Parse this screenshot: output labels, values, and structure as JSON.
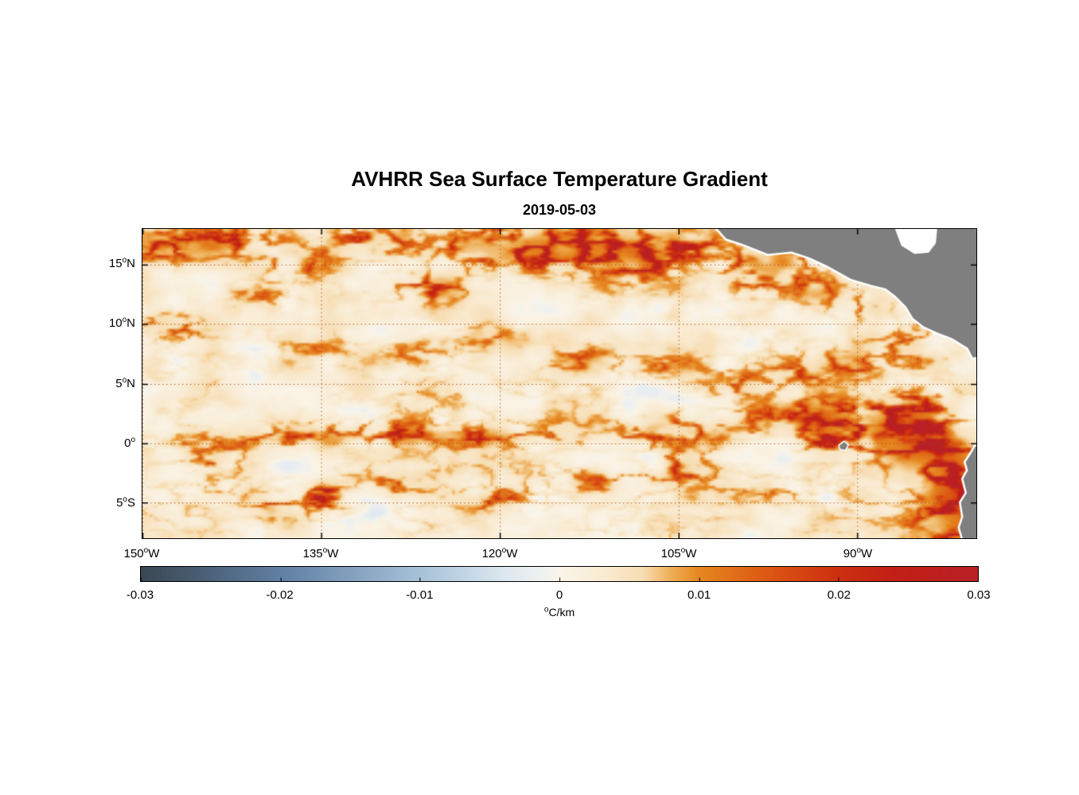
{
  "chart_data": {
    "type": "heatmap",
    "title": "AVHRR Sea Surface Temperature Gradient",
    "subtitle": "2019-05-03",
    "units_label": {
      "deg": "o",
      "text": "C/km"
    },
    "x_axis": {
      "lon_range": [
        -150,
        -80
      ],
      "ticks": [
        {
          "num": "150",
          "deg": "o",
          "hem": "W",
          "lon": -150
        },
        {
          "num": "135",
          "deg": "o",
          "hem": "W",
          "lon": -135
        },
        {
          "num": "120",
          "deg": "o",
          "hem": "W",
          "lon": -120
        },
        {
          "num": "105",
          "deg": "o",
          "hem": "W",
          "lon": -105
        },
        {
          "num": "90",
          "deg": "o",
          "hem": "W",
          "lon": -90
        }
      ]
    },
    "y_axis": {
      "lat_range": [
        18,
        -8
      ],
      "ticks": [
        {
          "num": "15",
          "deg": "o",
          "hem": "N",
          "lat": 15
        },
        {
          "num": "10",
          "deg": "o",
          "hem": "N",
          "lat": 10
        },
        {
          "num": "5",
          "deg": "o",
          "hem": "N",
          "lat": 5
        },
        {
          "num": "0",
          "deg": "o",
          "hem": "",
          "lat": 0
        },
        {
          "num": "5",
          "deg": "o",
          "hem": "S",
          "lat": -5
        }
      ]
    },
    "colorbar": {
      "min": -0.03,
      "max": 0.03,
      "ticks": [
        {
          "label": "-0.03",
          "value": -0.03
        },
        {
          "label": "-0.02",
          "value": -0.02
        },
        {
          "label": "-0.01",
          "value": -0.01
        },
        {
          "label": "0",
          "value": 0
        },
        {
          "label": "0.01",
          "value": 0.01
        },
        {
          "label": "0.02",
          "value": 0.02
        },
        {
          "label": "0.03",
          "value": 0.03
        }
      ],
      "stops": [
        {
          "v": -0.03,
          "c": "#3A4753"
        },
        {
          "v": -0.02,
          "c": "#5F7FA3"
        },
        {
          "v": -0.01,
          "c": "#A6C2D9"
        },
        {
          "v": -0.004,
          "c": "#DCE7EF"
        },
        {
          "v": -0.001,
          "c": "#F1F2F0"
        },
        {
          "v": 0.0,
          "c": "#FAF4E8"
        },
        {
          "v": 0.003,
          "c": "#F9ECD4"
        },
        {
          "v": 0.006,
          "c": "#F7DDB2"
        },
        {
          "v": 0.008,
          "c": "#EFAE56"
        },
        {
          "v": 0.01,
          "c": "#E68821"
        },
        {
          "v": 0.013,
          "c": "#E06A17"
        },
        {
          "v": 0.016,
          "c": "#D94E12"
        },
        {
          "v": 0.02,
          "c": "#CC3010"
        },
        {
          "v": 0.024,
          "c": "#C21F16"
        },
        {
          "v": 0.03,
          "c": "#B82025"
        }
      ]
    },
    "grid_color": "rgba(165,75,20,0.85)",
    "land_color": "#7F7F7F",
    "coast_gap_color": "#FFFFFF",
    "field": {
      "seeds": {
        "ridge": 7,
        "base": 13,
        "env": 21,
        "neg": 29
      },
      "features": [
        [
          -148.5,
          16.5,
          2.2,
          1.0,
          0.018
        ],
        [
          -143,
          17.0,
          2.5,
          0.9,
          0.016
        ],
        [
          -137,
          15.0,
          2.0,
          0.9,
          0.012
        ],
        [
          -131,
          16.8,
          2.8,
          0.9,
          0.018
        ],
        [
          -125.5,
          13.2,
          2.2,
          0.9,
          0.015
        ],
        [
          -122,
          16.5,
          2.5,
          1.0,
          0.018
        ],
        [
          -117,
          16.2,
          2.5,
          1.2,
          0.022
        ],
        [
          -112.5,
          16.8,
          2.2,
          1.2,
          0.024
        ],
        [
          -108.5,
          15.5,
          2.0,
          1.3,
          0.026
        ],
        [
          -104,
          16.5,
          2.0,
          1.0,
          0.018
        ],
        [
          -99,
          14.5,
          1.8,
          1.2,
          0.016
        ],
        [
          -96.5,
          15.3,
          1.5,
          1.0,
          0.02
        ],
        [
          -93.5,
          13.0,
          1.8,
          1.0,
          0.012
        ],
        [
          -89.5,
          11.5,
          1.8,
          1.0,
          0.01
        ],
        [
          -147.5,
          9.8,
          1.8,
          0.8,
          0.013
        ],
        [
          -140,
          12.5,
          2.0,
          0.8,
          0.01
        ],
        [
          -135,
          8.0,
          2.0,
          0.7,
          0.008
        ],
        [
          -127.5,
          7.6,
          2.2,
          0.7,
          0.01
        ],
        [
          -121,
          9.0,
          1.8,
          0.7,
          0.009
        ],
        [
          -113,
          7.2,
          2.2,
          0.8,
          0.01
        ],
        [
          -106,
          6.5,
          2.0,
          0.8,
          0.011
        ],
        [
          -100.5,
          5.0,
          2.0,
          0.9,
          0.012
        ],
        [
          -95,
          6.0,
          2.0,
          1.0,
          0.012
        ],
        [
          -90.5,
          6.5,
          2.0,
          1.0,
          0.012
        ],
        [
          -86,
          8.0,
          1.8,
          1.2,
          0.012
        ],
        [
          -143,
          0.0,
          2.5,
          0.7,
          0.01
        ],
        [
          -136.5,
          0.6,
          3.0,
          0.7,
          0.014
        ],
        [
          -129,
          0.8,
          3.0,
          0.7,
          0.015
        ],
        [
          -122,
          0.4,
          2.5,
          0.6,
          0.012
        ],
        [
          -115,
          0.6,
          2.5,
          0.7,
          0.01
        ],
        [
          -108,
          0.8,
          2.5,
          0.7,
          0.011
        ],
        [
          -101.5,
          1.5,
          2.5,
          0.8,
          0.012
        ],
        [
          -96,
          2.5,
          2.2,
          1.0,
          0.013
        ],
        [
          -92.5,
          0.3,
          1.5,
          0.8,
          0.016
        ],
        [
          -91.5,
          2.0,
          2.0,
          1.2,
          0.016
        ],
        [
          -87.5,
          1.0,
          2.0,
          1.5,
          0.022
        ],
        [
          -85.5,
          2.8,
          2.0,
          1.0,
          0.018
        ],
        [
          -84.5,
          0.0,
          1.8,
          1.8,
          0.024
        ],
        [
          -82.0,
          -2.5,
          1.5,
          2.0,
          0.024
        ],
        [
          -81.0,
          -5.5,
          1.5,
          2.0,
          0.022
        ],
        [
          -83.5,
          -7.0,
          2.0,
          1.2,
          0.016
        ],
        [
          -144,
          -1.8,
          2.0,
          0.7,
          0.01
        ],
        [
          -134.8,
          -4.4,
          0.9,
          0.8,
          0.018
        ],
        [
          -138.5,
          -5.5,
          1.5,
          0.7,
          0.009
        ],
        [
          -128,
          -3.5,
          2.0,
          0.8,
          0.008
        ],
        [
          -120.5,
          -4.8,
          2.2,
          0.8,
          0.01
        ],
        [
          -112,
          -3.0,
          2.0,
          0.8,
          0.009
        ],
        [
          -104.5,
          -2.3,
          2.2,
          0.8,
          0.011
        ],
        [
          -97.5,
          -4.0,
          2.0,
          0.8,
          0.009
        ]
      ]
    },
    "land_polygons": {
      "central_america": [
        [
          -102.6,
          19
        ],
        [
          -101,
          17.2
        ],
        [
          -99.5,
          16.7
        ],
        [
          -97.5,
          15.9
        ],
        [
          -95.5,
          16.1
        ],
        [
          -94,
          15.6
        ],
        [
          -92.5,
          14.9
        ],
        [
          -90.5,
          13.8
        ],
        [
          -88.8,
          13.3
        ],
        [
          -87.6,
          13.0
        ],
        [
          -86.8,
          12.4
        ],
        [
          -85.9,
          11.5
        ],
        [
          -85.3,
          10.5
        ],
        [
          -84.4,
          9.8
        ],
        [
          -83.3,
          9.3
        ],
        [
          -82,
          8.8
        ],
        [
          -80.7,
          8.0
        ],
        [
          -80.3,
          7.2
        ],
        [
          -79.0,
          7.3
        ],
        [
          -79.0,
          19
        ]
      ],
      "caribbean_notch": [
        [
          -87.2,
          19
        ],
        [
          -86.3,
          16.6
        ],
        [
          -85.2,
          15.9
        ],
        [
          -84.0,
          16.0
        ],
        [
          -83.4,
          16.8
        ],
        [
          -83.2,
          19
        ]
      ],
      "south_america": [
        [
          -79.0,
          0.5
        ],
        [
          -80.1,
          -0.3
        ],
        [
          -80.5,
          -1.0
        ],
        [
          -80.9,
          -1.6
        ],
        [
          -80.7,
          -2.3
        ],
        [
          -81.1,
          -3.0
        ],
        [
          -80.8,
          -4.2
        ],
        [
          -81.3,
          -5.0
        ],
        [
          -81.1,
          -6.2
        ],
        [
          -81.4,
          -7.1
        ],
        [
          -81.0,
          -8.5
        ],
        [
          -79.0,
          -8.5
        ]
      ],
      "galapagos": [
        [
          -91.5,
          -0.2
        ],
        [
          -91.1,
          0.1
        ],
        [
          -90.8,
          -0.15
        ],
        [
          -91.0,
          -0.55
        ],
        [
          -91.4,
          -0.5
        ]
      ]
    }
  }
}
